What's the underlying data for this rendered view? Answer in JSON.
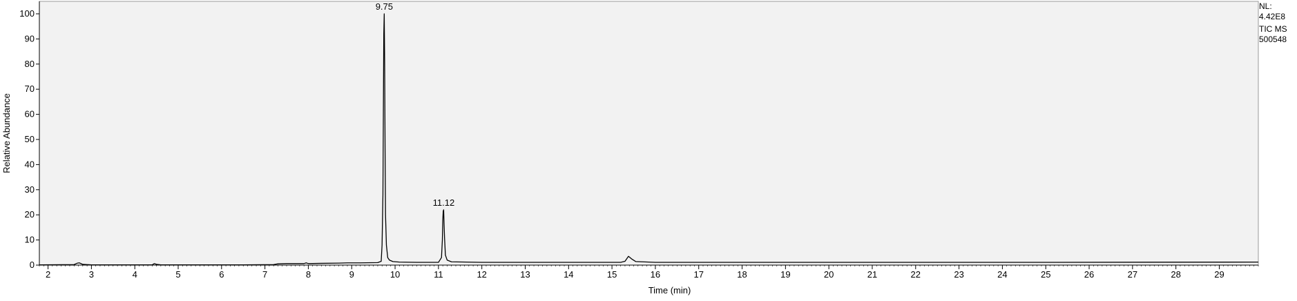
{
  "info": {
    "nl_label": "NL:",
    "nl_value": "4.42E8",
    "scan": "TIC  MS",
    "sample": "500548"
  },
  "chart_data": {
    "type": "line",
    "xlabel": "Time (min)",
    "ylabel": "Relative Abundance",
    "xlim": [
      1.8,
      29.9
    ],
    "ylim": [
      0,
      100
    ],
    "xticks": [
      2,
      3,
      4,
      5,
      6,
      7,
      8,
      9,
      10,
      11,
      12,
      13,
      14,
      15,
      16,
      17,
      18,
      19,
      20,
      21,
      22,
      23,
      24,
      25,
      26,
      27,
      28,
      29
    ],
    "yticks": [
      0,
      10,
      20,
      30,
      40,
      50,
      60,
      70,
      80,
      90,
      100
    ],
    "grid": false,
    "colors": {
      "plot_background": "#f2f2f2",
      "trace": "#000000"
    },
    "series": [
      {
        "x": [
          1.8,
          2.6,
          2.68,
          2.72,
          2.8,
          3.0,
          4.4,
          4.45,
          4.5,
          4.6,
          6.5,
          7.2,
          7.3,
          7.5,
          7.9,
          7.95,
          8.0,
          8.3,
          8.7,
          8.9,
          9.2,
          9.6,
          9.68,
          9.7,
          9.72,
          9.73,
          9.74,
          9.75,
          9.76,
          9.77,
          9.78,
          9.8,
          9.83,
          9.87,
          9.95,
          10.1,
          10.5,
          11.0,
          11.07,
          11.09,
          11.1,
          11.11,
          11.12,
          11.13,
          11.14,
          11.16,
          11.2,
          11.3,
          12.0,
          15.2,
          15.3,
          15.38,
          15.45,
          15.55,
          16.0,
          20.0,
          25.0,
          29.9
        ],
        "y": [
          0.1,
          0.2,
          0.8,
          0.9,
          0.3,
          0.1,
          0.1,
          0.6,
          0.3,
          0.1,
          0.1,
          0.2,
          0.5,
          0.6,
          0.6,
          0.9,
          0.6,
          0.7,
          0.8,
          0.9,
          0.9,
          1.0,
          1.5,
          8.0,
          28.0,
          60.0,
          92.0,
          100.0,
          80.0,
          45.0,
          20.0,
          8.0,
          3.0,
          2.0,
          1.4,
          1.2,
          1.1,
          1.1,
          3.0,
          10.0,
          18.0,
          21.5,
          22.0,
          16.0,
          11.0,
          4.0,
          2.0,
          1.3,
          1.1,
          1.1,
          1.5,
          3.5,
          2.5,
          1.4,
          1.1,
          1.1,
          1.1,
          1.2
        ]
      }
    ],
    "annotations": [
      {
        "label": "9.75",
        "x": 9.75,
        "y": 100.0
      },
      {
        "label": "11.12",
        "x": 11.12,
        "y": 22.0
      }
    ]
  }
}
